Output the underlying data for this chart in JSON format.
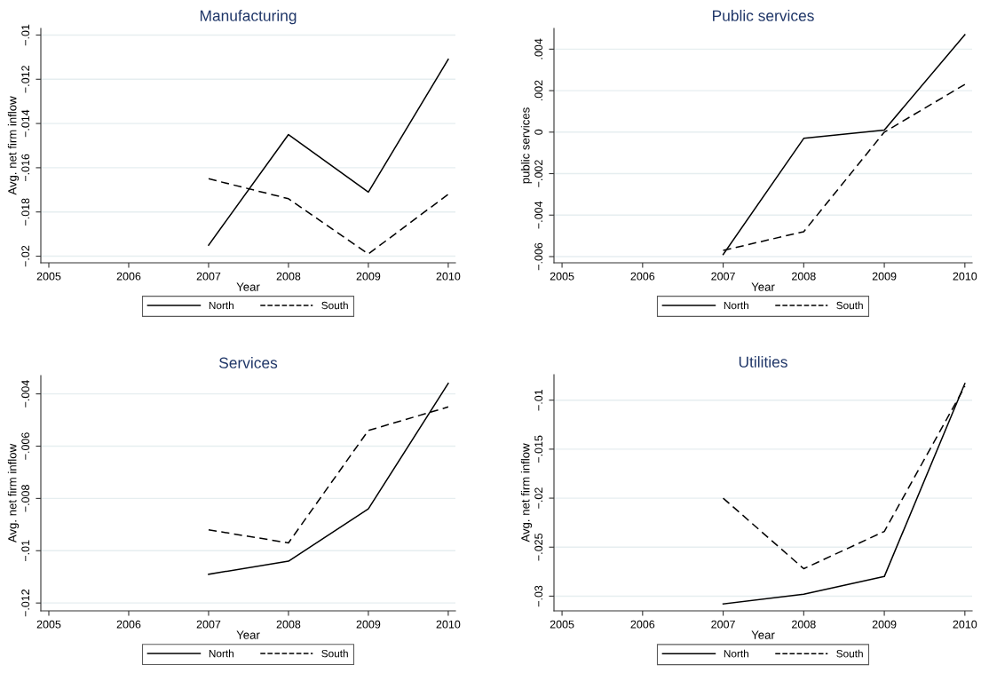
{
  "chart_data": [
    {
      "type": "line",
      "title": "Manufacturing",
      "xlabel": "Year",
      "ylabel": "Avg. net firm inflow",
      "x": [
        2007,
        2008,
        2009,
        2010
      ],
      "grid": "y",
      "legend": "bottom",
      "series": [
        {
          "name": "North",
          "color": "#000000",
          "line_style": "solid",
          "values": [
            -0.0195,
            -0.0145,
            -0.0171,
            -0.0111
          ]
        },
        {
          "name": "South",
          "color": "#000000",
          "line_style": "dashed",
          "values": [
            -0.0165,
            -0.0174,
            -0.0199,
            -0.0172
          ]
        }
      ],
      "xlim": [
        2004.9,
        2010.09
      ],
      "xticks": [
        2005,
        2006,
        2007,
        2008,
        2009,
        2010
      ],
      "ylim": [
        -0.0203,
        -0.0097
      ],
      "yticks": [
        {
          "value": -0.02,
          "label": "−.02"
        },
        {
          "value": -0.018,
          "label": "−.018"
        },
        {
          "value": -0.016,
          "label": "−.016"
        },
        {
          "value": -0.014,
          "label": "−.014"
        },
        {
          "value": -0.012,
          "label": "−.012"
        },
        {
          "value": -0.01,
          "label": "−.01"
        }
      ]
    },
    {
      "type": "line",
      "title": "Public services",
      "xlabel": "Year",
      "ylabel": "public services",
      "x": [
        2007,
        2008,
        2009,
        2010
      ],
      "grid": "y",
      "legend": "bottom",
      "series": [
        {
          "name": "North",
          "color": "#000000",
          "line_style": "solid",
          "values": [
            -0.0059,
            -0.0003,
            0.0001,
            0.0047
          ]
        },
        {
          "name": "South",
          "color": "#000000",
          "line_style": "dashed",
          "values": [
            -0.0057,
            -0.0048,
            0.0,
            0.0023
          ]
        }
      ],
      "xlim": [
        2004.9,
        2010.09
      ],
      "xticks": [
        2005,
        2006,
        2007,
        2008,
        2009,
        2010
      ],
      "ylim": [
        -0.0063,
        0.005
      ],
      "yticks": [
        {
          "value": -0.006,
          "label": "−.006"
        },
        {
          "value": -0.004,
          "label": "−.004"
        },
        {
          "value": -0.002,
          "label": "−.002"
        },
        0,
        {
          "value": 0.002,
          "label": ".002"
        },
        {
          "value": 0.004,
          "label": ".004"
        }
      ]
    },
    {
      "type": "line",
      "title": "Services",
      "xlabel": "Year",
      "ylabel": "Avg. net firm inflow",
      "x": [
        2007,
        2008,
        2009,
        2010
      ],
      "grid": "y",
      "legend": "bottom",
      "series": [
        {
          "name": "North",
          "color": "#000000",
          "line_style": "solid",
          "values": [
            -0.0109,
            -0.0104,
            -0.0084,
            -0.0036
          ]
        },
        {
          "name": "South",
          "color": "#000000",
          "line_style": "dashed",
          "values": [
            -0.0092,
            -0.0097,
            -0.0054,
            -0.0045
          ]
        }
      ],
      "xlim": [
        2004.9,
        2010.09
      ],
      "xticks": [
        2005,
        2006,
        2007,
        2008,
        2009,
        2010
      ],
      "ylim": [
        -0.0123,
        -0.0033
      ],
      "yticks": [
        {
          "value": -0.012,
          "label": "−.012"
        },
        {
          "value": -0.01,
          "label": "−.01"
        },
        {
          "value": -0.008,
          "label": "−.008"
        },
        {
          "value": -0.006,
          "label": "−.006"
        },
        {
          "value": -0.004,
          "label": "−.004"
        }
      ]
    },
    {
      "type": "line",
      "title": "Utilities",
      "xlabel": "Year",
      "ylabel": "Avg. net firm inflow",
      "x": [
        2007,
        2008,
        2009,
        2010
      ],
      "grid": "y",
      "legend": "bottom",
      "series": [
        {
          "name": "North",
          "color": "#000000",
          "line_style": "solid",
          "values": [
            -0.0308,
            -0.0298,
            -0.028,
            -0.0083
          ]
        },
        {
          "name": "South",
          "color": "#000000",
          "line_style": "dashed",
          "values": [
            -0.02,
            -0.0272,
            -0.0234,
            -0.0086
          ]
        }
      ],
      "xlim": [
        2004.9,
        2010.09
      ],
      "xticks": [
        2005,
        2006,
        2007,
        2008,
        2009,
        2010
      ],
      "ylim": [
        -0.0315,
        -0.0074
      ],
      "yticks": [
        {
          "value": -0.03,
          "label": "−.03"
        },
        {
          "value": -0.025,
          "label": "−.025"
        },
        {
          "value": -0.02,
          "label": "−.02"
        },
        {
          "value": -0.015,
          "label": "−.015"
        },
        {
          "value": -0.01,
          "label": "−.01"
        }
      ]
    }
  ]
}
